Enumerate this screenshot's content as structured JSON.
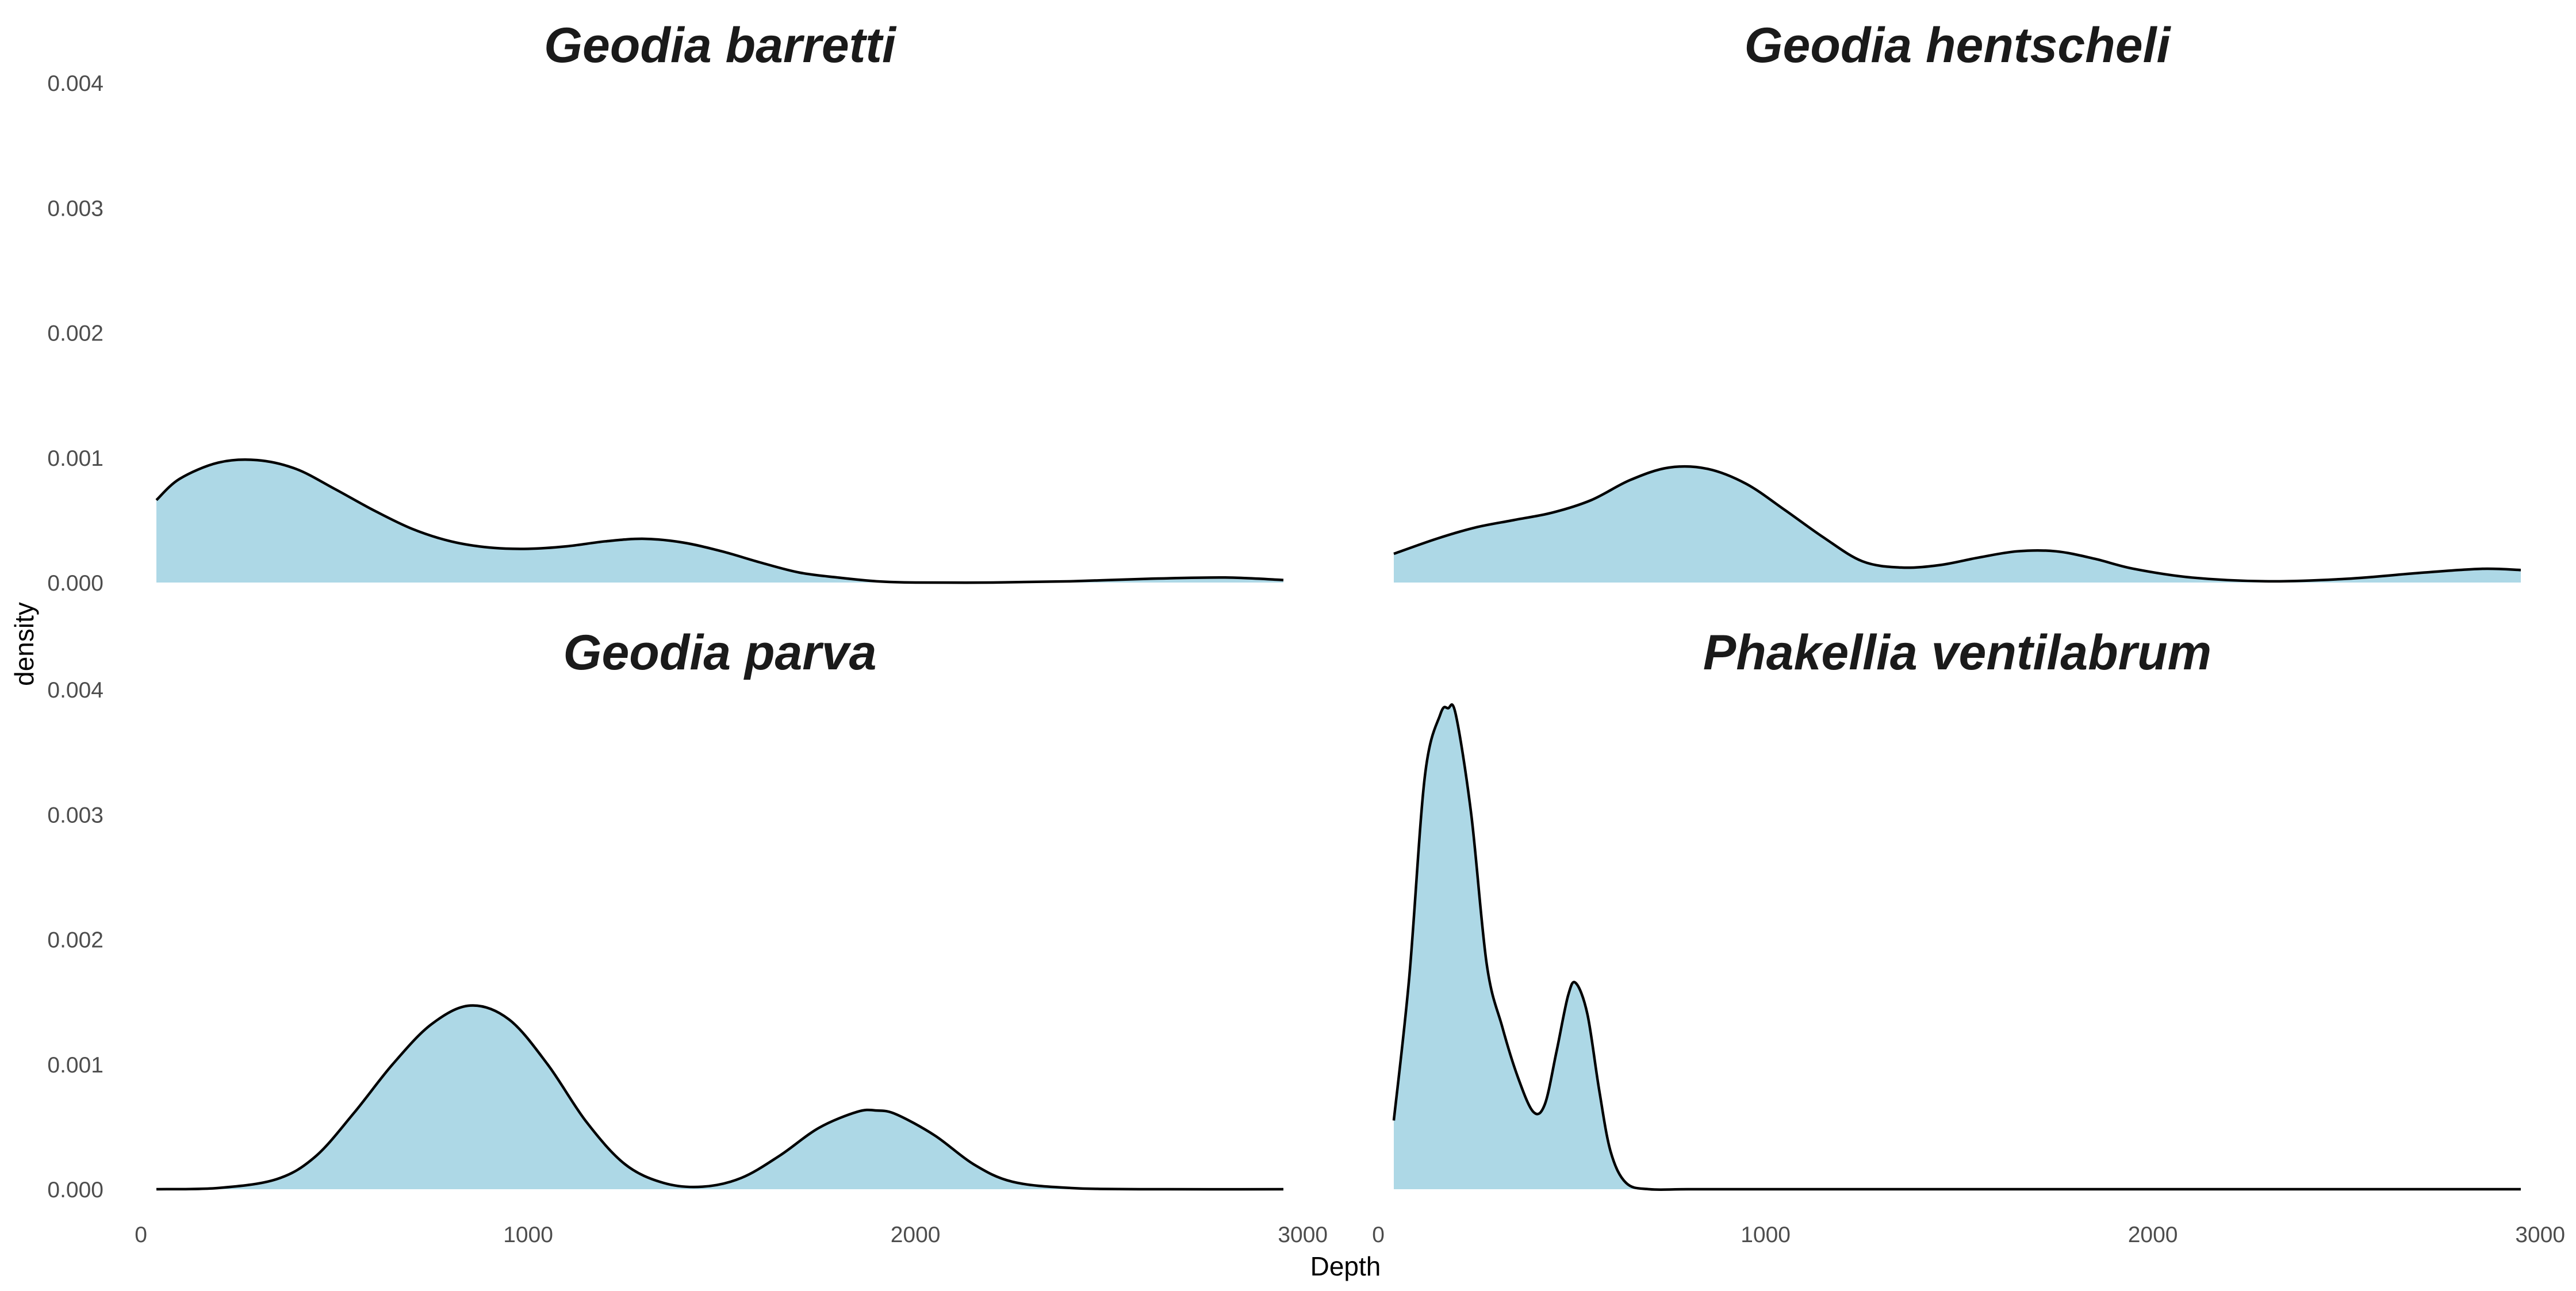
{
  "chart_data": {
    "type": "area",
    "xlabel": "Depth",
    "ylabel": "density",
    "xlim": [
      0,
      3000
    ],
    "ylim": [
      0,
      0.004
    ],
    "x_ticks": [
      "0",
      "1000",
      "2000",
      "3000"
    ],
    "y_ticks": [
      "0.000",
      "0.001",
      "0.002",
      "0.003",
      "0.004"
    ],
    "grid": false,
    "legend": "none",
    "fill_color": "#ADD8E6",
    "line_color": "#000000",
    "panels": [
      {
        "title": "Geodia barretti",
        "x": [
          40,
          100,
          200,
          300,
          400,
          500,
          600,
          700,
          800,
          900,
          1000,
          1100,
          1200,
          1300,
          1400,
          1500,
          1600,
          1700,
          1800,
          1900,
          2000,
          2200,
          2400,
          2600,
          2800,
          2950
        ],
        "values": [
          0.00066,
          0.00083,
          0.00096,
          0.00098,
          0.00091,
          0.00075,
          0.00058,
          0.00043,
          0.00033,
          0.00028,
          0.00027,
          0.00029,
          0.00033,
          0.00035,
          0.00032,
          0.00025,
          0.00016,
          8e-05,
          4e-05,
          1e-05,
          0.0,
          0.0,
          1e-05,
          3e-05,
          4e-05,
          2e-05
        ]
      },
      {
        "title": "Geodia hentscheli",
        "x": [
          40,
          150,
          250,
          350,
          450,
          550,
          650,
          750,
          850,
          950,
          1050,
          1150,
          1250,
          1350,
          1450,
          1550,
          1650,
          1750,
          1850,
          1950,
          2100,
          2300,
          2500,
          2700,
          2850,
          2950
        ],
        "values": [
          0.00023,
          0.00035,
          0.00044,
          0.0005,
          0.00056,
          0.00066,
          0.00082,
          0.00092,
          0.00091,
          0.00079,
          0.00058,
          0.00036,
          0.00017,
          0.00012,
          0.00014,
          0.0002,
          0.00025,
          0.00025,
          0.00019,
          0.00011,
          4e-05,
          1e-05,
          3e-05,
          8e-05,
          0.00011,
          0.0001
        ]
      },
      {
        "title": "Geodia parva",
        "x": [
          40,
          200,
          350,
          450,
          550,
          650,
          750,
          850,
          950,
          1050,
          1150,
          1250,
          1350,
          1450,
          1550,
          1650,
          1750,
          1850,
          1900,
          1950,
          2050,
          2150,
          2250,
          2400,
          2600,
          2950
        ],
        "values": [
          0.0,
          1e-05,
          8e-05,
          0.00026,
          0.00061,
          0.001,
          0.00132,
          0.00147,
          0.00136,
          0.001,
          0.00054,
          0.0002,
          5e-05,
          2e-05,
          9e-05,
          0.00027,
          0.00049,
          0.00062,
          0.00063,
          0.0006,
          0.00043,
          0.0002,
          6e-05,
          1e-05,
          0.0,
          0.0
        ]
      },
      {
        "title": "Phakellia ventilabrum",
        "x": [
          40,
          80,
          120,
          160,
          180,
          200,
          240,
          280,
          320,
          360,
          400,
          430,
          460,
          490,
          510,
          540,
          570,
          600,
          640,
          700,
          800,
          1000,
          1500,
          2000,
          2500,
          2950
        ],
        "values": [
          0.00055,
          0.0017,
          0.0033,
          0.0038,
          0.00385,
          0.0038,
          0.003,
          0.0018,
          0.0013,
          0.0009,
          0.00062,
          0.00068,
          0.0011,
          0.00155,
          0.00165,
          0.0014,
          0.0008,
          0.0003,
          5e-05,
          0.0,
          0.0,
          0.0,
          0.0,
          0.0,
          0.0,
          0.0
        ]
      }
    ]
  }
}
